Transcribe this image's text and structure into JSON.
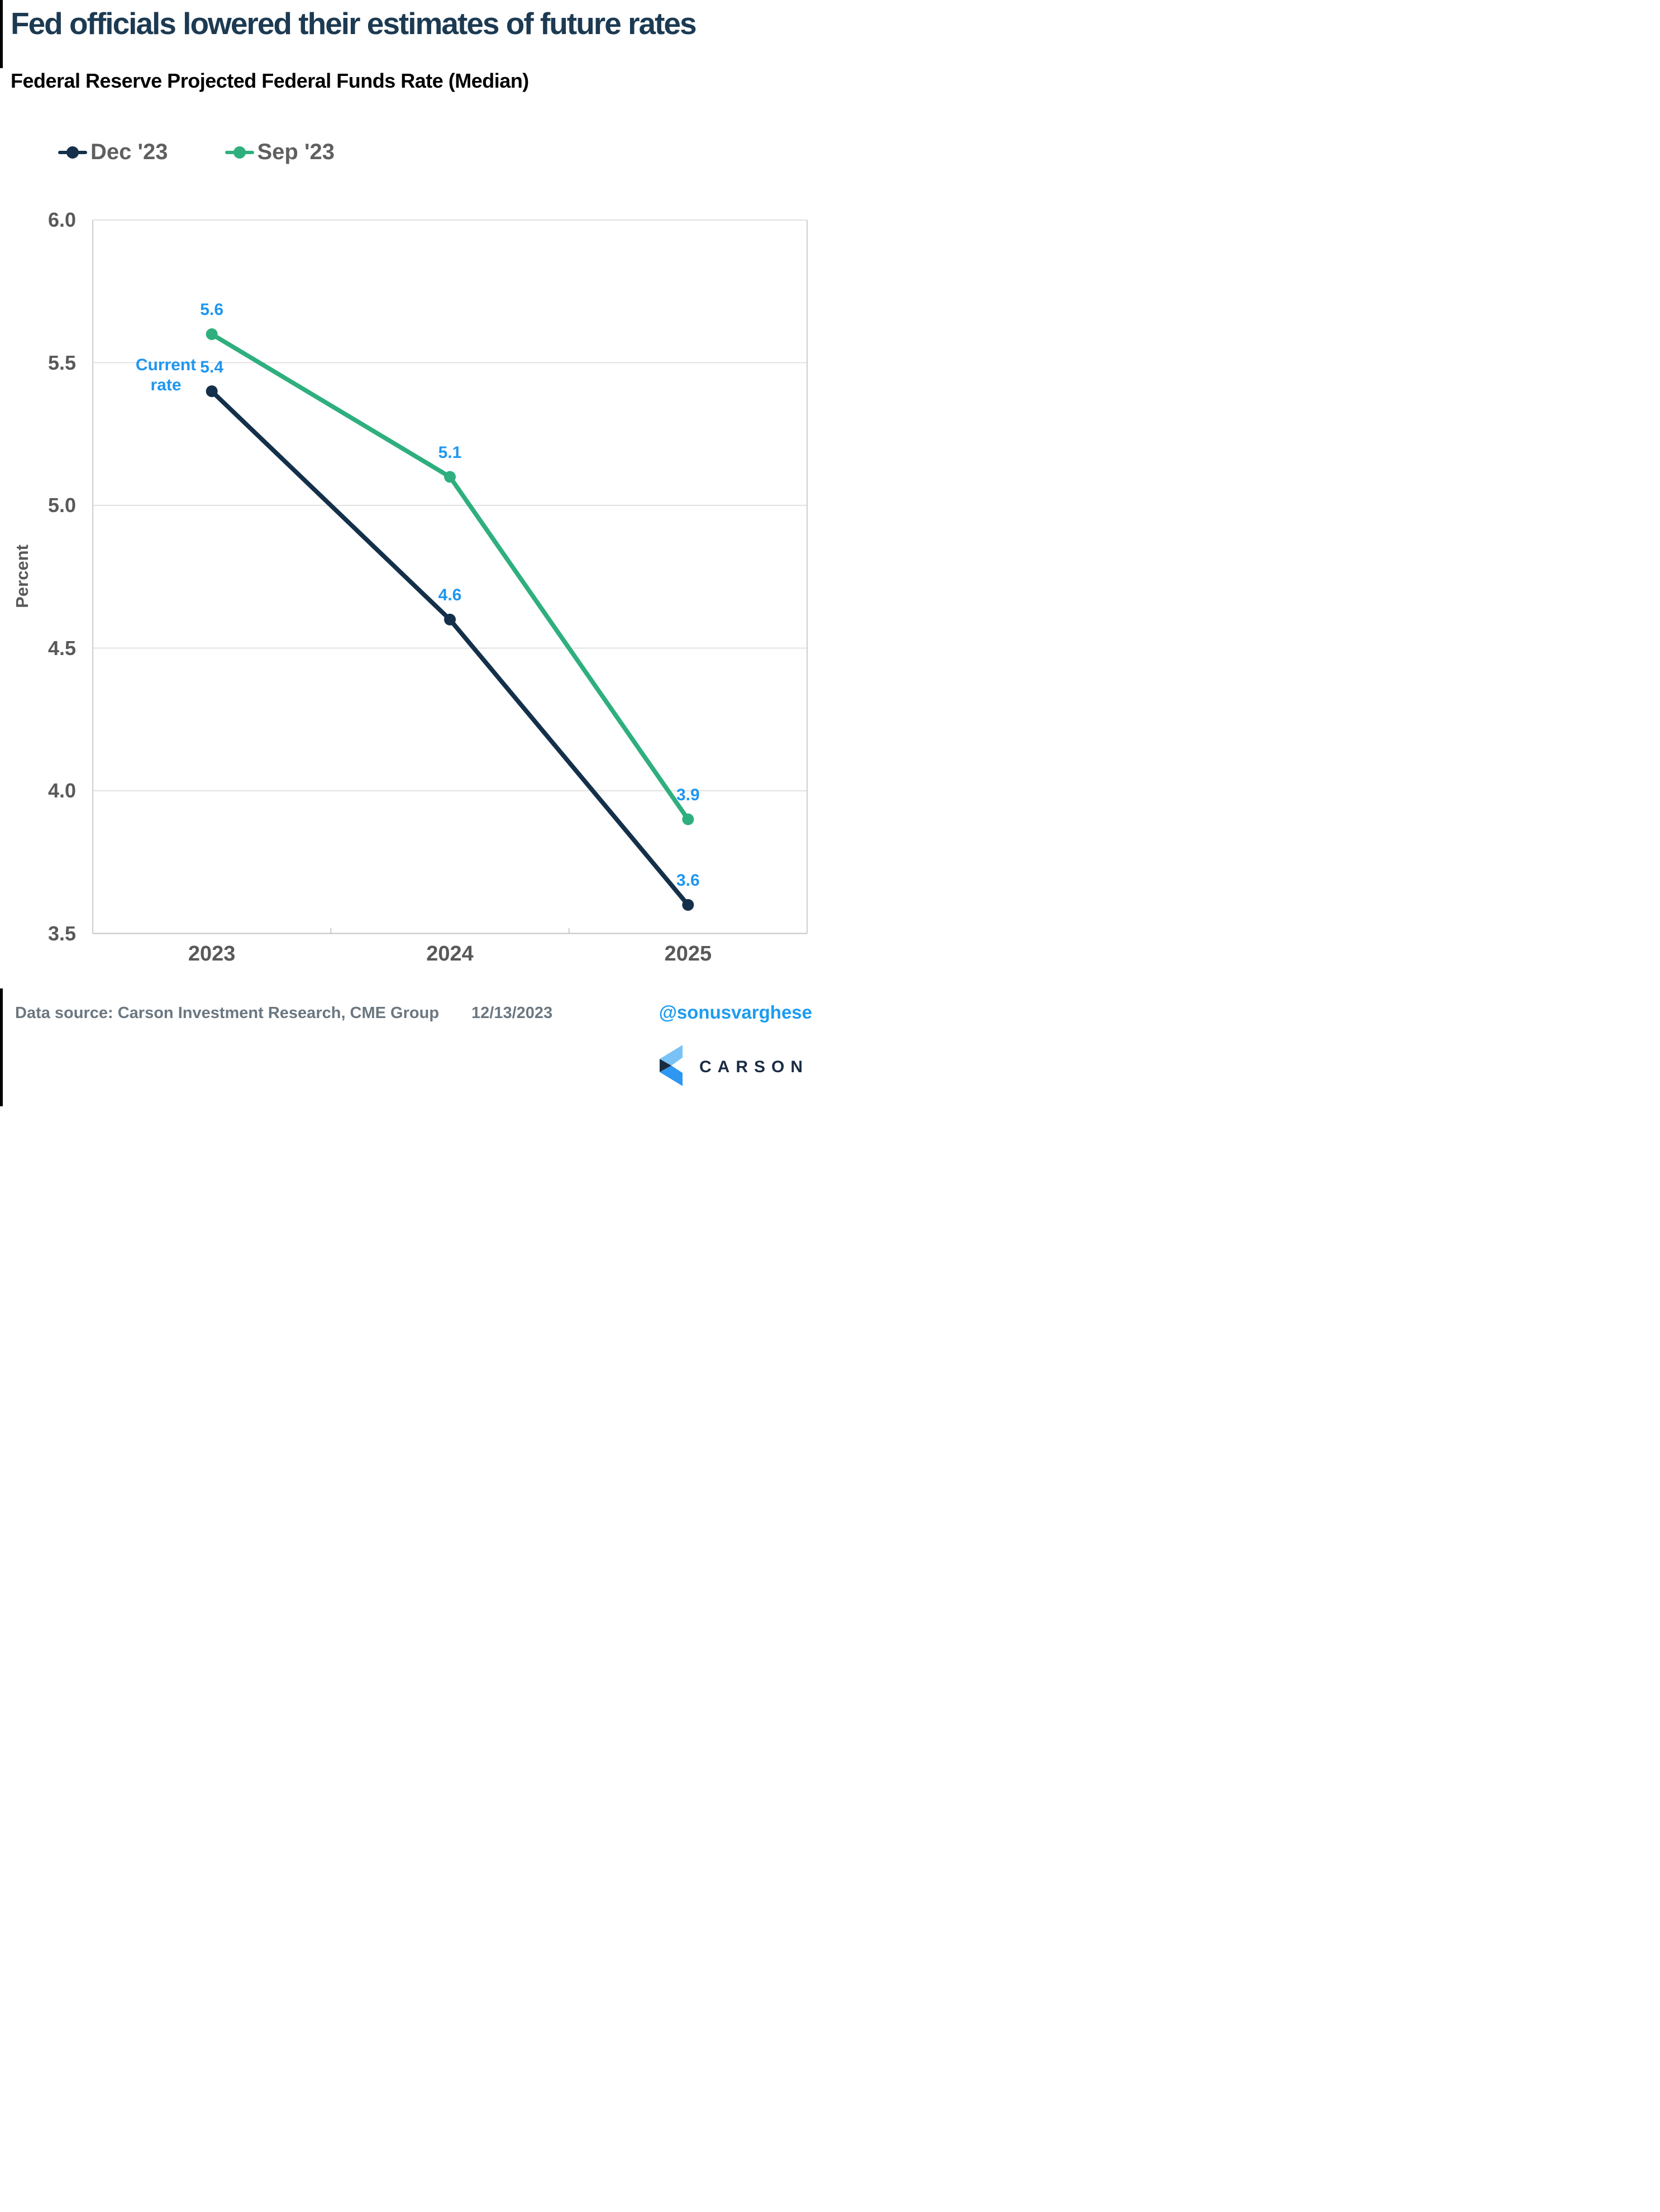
{
  "page": {
    "title": "Fed officials lowered their estimates of future rates",
    "subtitle": "Federal Reserve Projected Federal Funds Rate (Median)"
  },
  "legend": {
    "items": [
      {
        "label": "Dec '23"
      },
      {
        "label": "Sep '23"
      }
    ]
  },
  "chart_data": {
    "type": "line",
    "x": [
      "2023",
      "2024",
      "2025"
    ],
    "series": [
      {
        "name": "Dec '23",
        "color": "#14304A",
        "values": [
          5.4,
          4.6,
          3.6
        ]
      },
      {
        "name": "Sep '23",
        "color": "#2FAF7E",
        "values": [
          5.6,
          5.1,
          3.9
        ]
      }
    ],
    "title": "Federal Reserve Projected Federal Funds Rate (Median)",
    "xlabel": "",
    "ylabel": "Percent",
    "ylim": [
      3.5,
      6.0
    ],
    "yticks": [
      "6.0",
      "5.5",
      "5.0",
      "4.5",
      "4.0",
      "3.5"
    ],
    "grid": true,
    "legend_position": "top-left",
    "data_label_color": "#1E96F0",
    "annotation": {
      "lines": [
        "Current",
        "rate"
      ]
    }
  },
  "colors": {
    "title": "#1C3A52",
    "gridline": "#D9D9D9",
    "axis_border": "#C9C9C9",
    "tick_text": "#595959",
    "legend_text": "#5F5F5F",
    "footer_text": "#6B7780",
    "handle_blue": "#1E9BF0"
  },
  "footer": {
    "data_source": "Data source: Carson Investment Research, CME Group",
    "date": "12/13/2023",
    "handle": "@sonusvarghese",
    "logo": {
      "text": "CARSON",
      "colors": {
        "light": "#79C2F5",
        "navy": "#1B2B3E",
        "blue": "#2D97F2"
      }
    }
  }
}
